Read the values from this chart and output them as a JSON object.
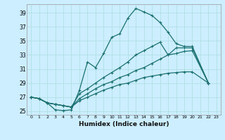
{
  "xlabel": "Humidex (Indice chaleur)",
  "background_color": "#cceeff",
  "grid_color": "#aadddd",
  "line_color": "#1a7070",
  "xlim": [
    -0.5,
    23.5
  ],
  "ylim": [
    24.5,
    40.2
  ],
  "yticks": [
    25,
    27,
    29,
    31,
    33,
    35,
    37,
    39
  ],
  "xticks": [
    0,
    1,
    2,
    3,
    4,
    5,
    6,
    7,
    8,
    9,
    10,
    11,
    12,
    13,
    14,
    15,
    16,
    17,
    18,
    19,
    20,
    21,
    22,
    23
  ],
  "series1_x": [
    0,
    1,
    2,
    3,
    4,
    5,
    6,
    7,
    8,
    9,
    10,
    11,
    12,
    13,
    14,
    15,
    16,
    17,
    18,
    19,
    20,
    22
  ],
  "series1_y": [
    27,
    26.8,
    26.2,
    25.2,
    25.1,
    25.2,
    28.0,
    32.0,
    31.2,
    33.2,
    35.5,
    36.0,
    38.2,
    39.6,
    39.1,
    38.6,
    37.6,
    36.2,
    34.6,
    34.2,
    34.2,
    29.0
  ],
  "series2_x": [
    0,
    1,
    2,
    3,
    4,
    5,
    6,
    7,
    8,
    9,
    10,
    11,
    12,
    13,
    14,
    15,
    16,
    17,
    18,
    19,
    20,
    22
  ],
  "series2_y": [
    27,
    26.8,
    26.2,
    26.0,
    25.8,
    25.6,
    27.5,
    28.2,
    29.0,
    29.8,
    30.5,
    31.2,
    32.0,
    33.0,
    33.6,
    34.2,
    34.8,
    33.0,
    34.0,
    34.0,
    34.0,
    29.0
  ],
  "series3_x": [
    0,
    1,
    2,
    3,
    4,
    5,
    6,
    7,
    8,
    9,
    10,
    11,
    12,
    13,
    14,
    15,
    16,
    17,
    18,
    19,
    20,
    22
  ],
  "series3_y": [
    27,
    26.8,
    26.2,
    26.0,
    25.8,
    25.6,
    26.8,
    27.5,
    28.2,
    28.8,
    29.2,
    29.8,
    30.2,
    30.8,
    31.2,
    31.8,
    32.4,
    33.0,
    33.2,
    33.5,
    33.6,
    29.0
  ],
  "series4_x": [
    0,
    1,
    2,
    3,
    4,
    5,
    6,
    7,
    8,
    9,
    10,
    11,
    12,
    13,
    14,
    15,
    16,
    17,
    18,
    19,
    20,
    22
  ],
  "series4_y": [
    27,
    26.8,
    26.2,
    26.0,
    25.8,
    25.6,
    26.5,
    27.0,
    27.5,
    28.0,
    28.4,
    28.8,
    29.0,
    29.4,
    29.8,
    30.0,
    30.2,
    30.4,
    30.5,
    30.6,
    30.6,
    29.0
  ]
}
